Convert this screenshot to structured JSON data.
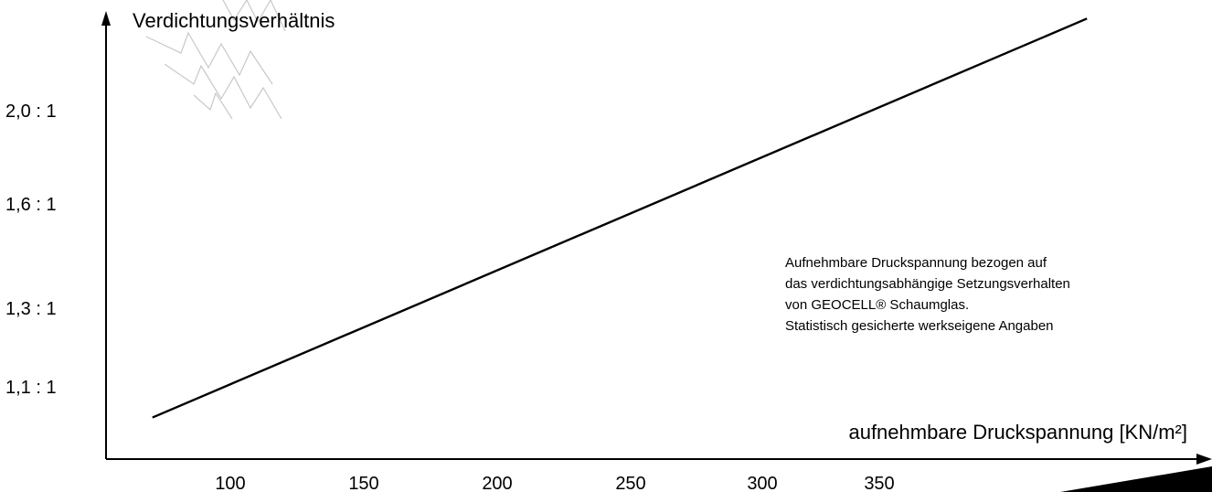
{
  "chart_data": {
    "type": "line",
    "title": "",
    "xlabel": "aufnehmbare Druckspannung [KN/m²]",
    "ylabel": "Verdichtungsverhältnis",
    "x_ticks": [
      "100",
      "150",
      "200",
      "250",
      "300",
      "350"
    ],
    "y_ticks": [
      "1,1 : 1",
      "1,3 : 1",
      "1,6 : 1",
      "2,0 : 1"
    ],
    "series": [
      {
        "values": [
          {
            "x": 70,
            "y": "1,0 : 1"
          },
          {
            "x": 430,
            "y": "2,3 : 1"
          }
        ]
      }
    ],
    "grid": false,
    "legend": "none",
    "annotation": [
      "Aufnehmbare Druckspannung bezogen auf",
      "das verdichtungsabhängige Setzungsverhalten",
      "von GEOCELL® Schaumglas.",
      "Statistisch gesicherte werkseigene Angaben"
    ],
    "line_color": "#000000",
    "watermark_color": "#c8c8c8"
  }
}
